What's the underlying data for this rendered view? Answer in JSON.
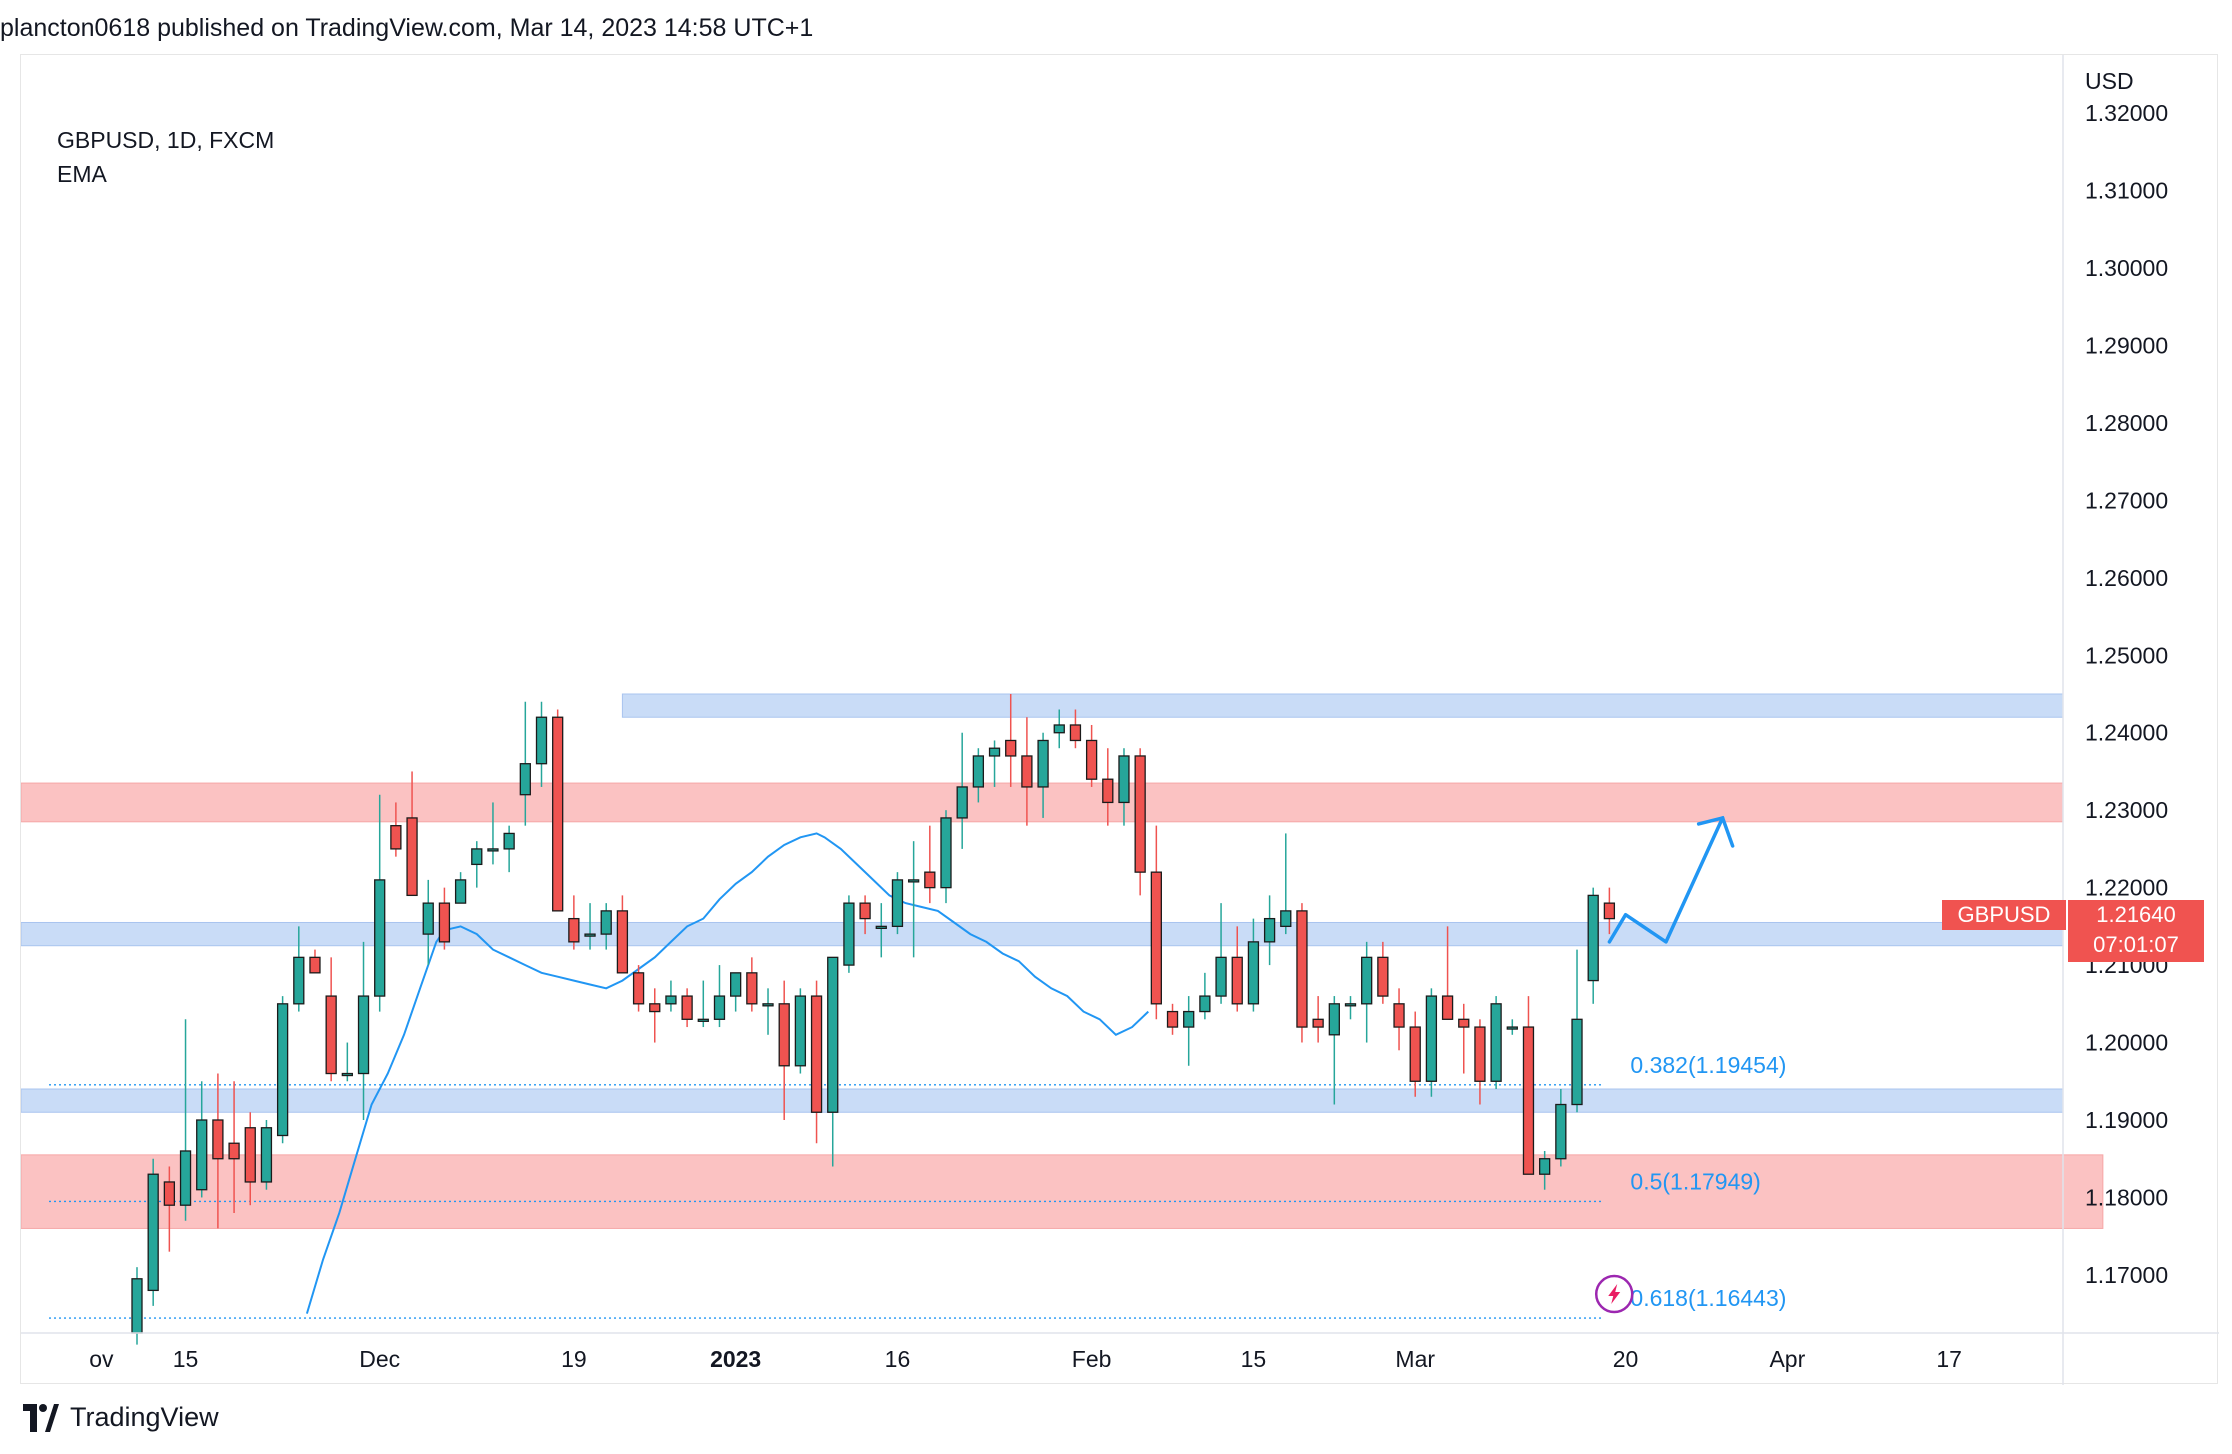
{
  "header": {
    "text": "plancton0618 published on TradingView.com, Mar 14, 2023 14:58 UTC+1"
  },
  "legend": {
    "symbol": "GBPUSD, 1D, FXCM",
    "indicator": "EMA"
  },
  "footer": {
    "brand": "TradingView"
  },
  "price_label": {
    "symbol": "GBPUSD",
    "price": "1.21640",
    "countdown": "07:01:07"
  },
  "colors": {
    "up": "#26a69a",
    "down": "#ef5350",
    "ema": "#2196f3",
    "zone_blue": "#c9dcf7",
    "zone_red": "#fbc2c2",
    "fib": "#2196f3",
    "label_red": "#f05350"
  },
  "chart_data": {
    "type": "candlestick",
    "currency": "USD",
    "y_ticks": [
      "1.32000",
      "1.31000",
      "1.30000",
      "1.29000",
      "1.28000",
      "1.27000",
      "1.26000",
      "1.25000",
      "1.24000",
      "1.23000",
      "1.22000",
      "1.21000",
      "1.20000",
      "1.19000",
      "1.18000",
      "1.17000"
    ],
    "ylim": [
      1.1625,
      1.3275
    ],
    "x_ticks": [
      {
        "label": "ov",
        "i": -2.2,
        "bold": false
      },
      {
        "label": "15",
        "i": 3,
        "bold": false
      },
      {
        "label": "Dec",
        "i": 15,
        "bold": false
      },
      {
        "label": "19",
        "i": 27,
        "bold": false
      },
      {
        "label": "2023",
        "i": 37,
        "bold": true
      },
      {
        "label": "16",
        "i": 47,
        "bold": false
      },
      {
        "label": "Feb",
        "i": 59,
        "bold": false
      },
      {
        "label": "15",
        "i": 69,
        "bold": false
      },
      {
        "label": "Mar",
        "i": 79,
        "bold": false
      },
      {
        "label": "20",
        "i": 92,
        "bold": false
      },
      {
        "label": "Apr",
        "i": 102,
        "bold": false
      },
      {
        "label": "17",
        "i": 112,
        "bold": false
      }
    ],
    "candles": [
      [
        1.1625,
        1.171,
        1.161,
        1.1695
      ],
      [
        1.168,
        1.185,
        1.166,
        1.183
      ],
      [
        1.182,
        1.184,
        1.173,
        1.179
      ],
      [
        1.179,
        1.203,
        1.177,
        1.186
      ],
      [
        1.181,
        1.195,
        1.18,
        1.19
      ],
      [
        1.19,
        1.196,
        1.176,
        1.185
      ],
      [
        1.187,
        1.195,
        1.178,
        1.185
      ],
      [
        1.189,
        1.191,
        1.179,
        1.182
      ],
      [
        1.182,
        1.19,
        1.181,
        1.189
      ],
      [
        1.188,
        1.206,
        1.187,
        1.205
      ],
      [
        1.205,
        1.215,
        1.204,
        1.211
      ],
      [
        1.211,
        1.212,
        1.209,
        1.209
      ],
      [
        1.206,
        1.211,
        1.195,
        1.196
      ],
      [
        1.196,
        1.2,
        1.195,
        1.196
      ],
      [
        1.196,
        1.213,
        1.19,
        1.206
      ],
      [
        1.206,
        1.232,
        1.204,
        1.221
      ],
      [
        1.228,
        1.231,
        1.224,
        1.225
      ],
      [
        1.229,
        1.235,
        1.219,
        1.219
      ],
      [
        1.214,
        1.221,
        1.21,
        1.218
      ],
      [
        1.218,
        1.22,
        1.212,
        1.213
      ],
      [
        1.218,
        1.222,
        1.218,
        1.221
      ],
      [
        1.223,
        1.226,
        1.22,
        1.225
      ],
      [
        1.225,
        1.231,
        1.223,
        1.225
      ],
      [
        1.225,
        1.228,
        1.222,
        1.227
      ],
      [
        1.232,
        1.244,
        1.228,
        1.236
      ],
      [
        1.236,
        1.244,
        1.233,
        1.242
      ],
      [
        1.242,
        1.243,
        1.218,
        1.217
      ],
      [
        1.216,
        1.219,
        1.212,
        1.213
      ],
      [
        1.214,
        1.218,
        1.212,
        1.214
      ],
      [
        1.214,
        1.218,
        1.212,
        1.217
      ],
      [
        1.217,
        1.219,
        1.209,
        1.209
      ],
      [
        1.209,
        1.21,
        1.204,
        1.205
      ],
      [
        1.205,
        1.207,
        1.2,
        1.204
      ],
      [
        1.205,
        1.208,
        1.204,
        1.206
      ],
      [
        1.206,
        1.207,
        1.202,
        1.203
      ],
      [
        1.203,
        1.208,
        1.202,
        1.203
      ],
      [
        1.203,
        1.21,
        1.202,
        1.206
      ],
      [
        1.206,
        1.209,
        1.204,
        1.209
      ],
      [
        1.209,
        1.211,
        1.204,
        1.205
      ],
      [
        1.205,
        1.207,
        1.201,
        1.205
      ],
      [
        1.205,
        1.208,
        1.19,
        1.197
      ],
      [
        1.197,
        1.207,
        1.196,
        1.206
      ],
      [
        1.206,
        1.208,
        1.187,
        1.191
      ],
      [
        1.191,
        1.211,
        1.184,
        1.211
      ],
      [
        1.21,
        1.219,
        1.209,
        1.218
      ],
      [
        1.218,
        1.219,
        1.214,
        1.216
      ],
      [
        1.215,
        1.218,
        1.211,
        1.215
      ],
      [
        1.215,
        1.222,
        1.214,
        1.221
      ],
      [
        1.221,
        1.226,
        1.211,
        1.221
      ],
      [
        1.222,
        1.228,
        1.218,
        1.22
      ],
      [
        1.22,
        1.23,
        1.218,
        1.229
      ],
      [
        1.229,
        1.24,
        1.225,
        1.233
      ],
      [
        1.233,
        1.238,
        1.231,
        1.237
      ],
      [
        1.237,
        1.239,
        1.233,
        1.238
      ],
      [
        1.239,
        1.245,
        1.233,
        1.237
      ],
      [
        1.237,
        1.242,
        1.228,
        1.233
      ],
      [
        1.233,
        1.24,
        1.229,
        1.239
      ],
      [
        1.24,
        1.243,
        1.238,
        1.241
      ],
      [
        1.241,
        1.243,
        1.238,
        1.239
      ],
      [
        1.239,
        1.241,
        1.233,
        1.234
      ],
      [
        1.234,
        1.238,
        1.228,
        1.231
      ],
      [
        1.231,
        1.238,
        1.228,
        1.237
      ],
      [
        1.237,
        1.238,
        1.219,
        1.222
      ],
      [
        1.222,
        1.228,
        1.203,
        1.205
      ],
      [
        1.204,
        1.205,
        1.201,
        1.202
      ],
      [
        1.202,
        1.206,
        1.197,
        1.204
      ],
      [
        1.204,
        1.209,
        1.203,
        1.206
      ],
      [
        1.206,
        1.218,
        1.205,
        1.211
      ],
      [
        1.211,
        1.215,
        1.204,
        1.205
      ],
      [
        1.205,
        1.216,
        1.204,
        1.213
      ],
      [
        1.213,
        1.219,
        1.21,
        1.216
      ],
      [
        1.215,
        1.227,
        1.214,
        1.217
      ],
      [
        1.217,
        1.218,
        1.2,
        1.202
      ],
      [
        1.203,
        1.206,
        1.2,
        1.202
      ],
      [
        1.201,
        1.206,
        1.192,
        1.205
      ],
      [
        1.205,
        1.206,
        1.203,
        1.205
      ],
      [
        1.205,
        1.213,
        1.2,
        1.211
      ],
      [
        1.211,
        1.213,
        1.205,
        1.206
      ],
      [
        1.205,
        1.207,
        1.199,
        1.202
      ],
      [
        1.202,
        1.204,
        1.193,
        1.195
      ],
      [
        1.195,
        1.207,
        1.193,
        1.206
      ],
      [
        1.206,
        1.215,
        1.203,
        1.203
      ],
      [
        1.203,
        1.205,
        1.196,
        1.202
      ],
      [
        1.202,
        1.203,
        1.192,
        1.195
      ],
      [
        1.195,
        1.206,
        1.194,
        1.205
      ],
      [
        1.202,
        1.203,
        1.201,
        1.202
      ],
      [
        1.202,
        1.206,
        1.183,
        1.183
      ],
      [
        1.183,
        1.186,
        1.181,
        1.185
      ],
      [
        1.185,
        1.194,
        1.184,
        1.192
      ],
      [
        1.192,
        1.212,
        1.191,
        1.203
      ],
      [
        1.208,
        1.22,
        1.205,
        1.219
      ],
      [
        1.218,
        1.22,
        1.214,
        1.216
      ]
    ],
    "ema": [
      [
        15,
        1.165
      ],
      [
        17,
        1.172
      ],
      [
        19,
        1.178
      ],
      [
        21,
        1.185
      ],
      [
        23,
        1.192
      ],
      [
        25,
        1.196
      ],
      [
        27,
        1.201
      ],
      [
        29,
        1.207
      ],
      [
        31,
        1.213
      ],
      [
        32,
        1.2145
      ],
      [
        34,
        1.215
      ],
      [
        36,
        1.214
      ],
      [
        38,
        1.212
      ],
      [
        40,
        1.211
      ],
      [
        42,
        1.21
      ],
      [
        44,
        1.209
      ],
      [
        46,
        1.2085
      ],
      [
        48,
        1.208
      ],
      [
        50,
        1.2075
      ],
      [
        52,
        1.207
      ],
      [
        54,
        1.208
      ],
      [
        56,
        1.2095
      ],
      [
        58,
        1.211
      ],
      [
        60,
        1.213
      ],
      [
        62,
        1.215
      ],
      [
        64,
        1.216
      ],
      [
        66,
        1.2185
      ],
      [
        68,
        1.2205
      ],
      [
        70,
        1.222
      ],
      [
        72,
        1.224
      ],
      [
        74,
        1.2255
      ],
      [
        76,
        1.2265
      ],
      [
        78,
        1.227
      ],
      [
        79,
        1.2265
      ],
      [
        81,
        1.225
      ],
      [
        83,
        1.223
      ],
      [
        85,
        1.221
      ],
      [
        87,
        1.219
      ],
      [
        89,
        1.218
      ],
      [
        91,
        1.2175
      ],
      [
        93,
        1.217
      ],
      [
        95,
        1.2155
      ],
      [
        97,
        1.214
      ],
      [
        99,
        1.213
      ],
      [
        101,
        1.2115
      ],
      [
        103,
        1.2105
      ],
      [
        105,
        1.2085
      ],
      [
        107,
        1.207
      ],
      [
        109,
        1.206
      ],
      [
        111,
        1.204
      ],
      [
        113,
        1.203
      ],
      [
        115,
        1.201
      ],
      [
        117,
        1.202
      ],
      [
        119,
        1.204
      ]
    ],
    "zones": [
      {
        "color": "blue",
        "top": 1.245,
        "bottom": 1.242,
        "from": 30,
        "to": "end"
      },
      {
        "color": "red",
        "top": 1.2335,
        "bottom": 1.2285,
        "from": "start",
        "to": "end"
      },
      {
        "color": "blue",
        "top": 1.2155,
        "bottom": 1.2125,
        "from": "start",
        "to": "end"
      },
      {
        "color": "blue",
        "top": 1.194,
        "bottom": 1.191,
        "from": "start",
        "to": "end"
      },
      {
        "color": "red",
        "top": 1.1855,
        "bottom": 1.176,
        "from": "start",
        "to": 121.5
      }
    ],
    "fib_levels": [
      {
        "label": "0.382(1.19454)",
        "value": 1.19454
      },
      {
        "label": "0.5(1.17949)",
        "value": 1.17949
      },
      {
        "label": "0.618(1.16443)",
        "value": 1.16443
      }
    ],
    "projection": [
      [
        91,
        1.213
      ],
      [
        92,
        1.2165
      ],
      [
        94.5,
        1.213
      ],
      [
        98,
        1.229
      ]
    ],
    "last_price": 1.2164
  }
}
